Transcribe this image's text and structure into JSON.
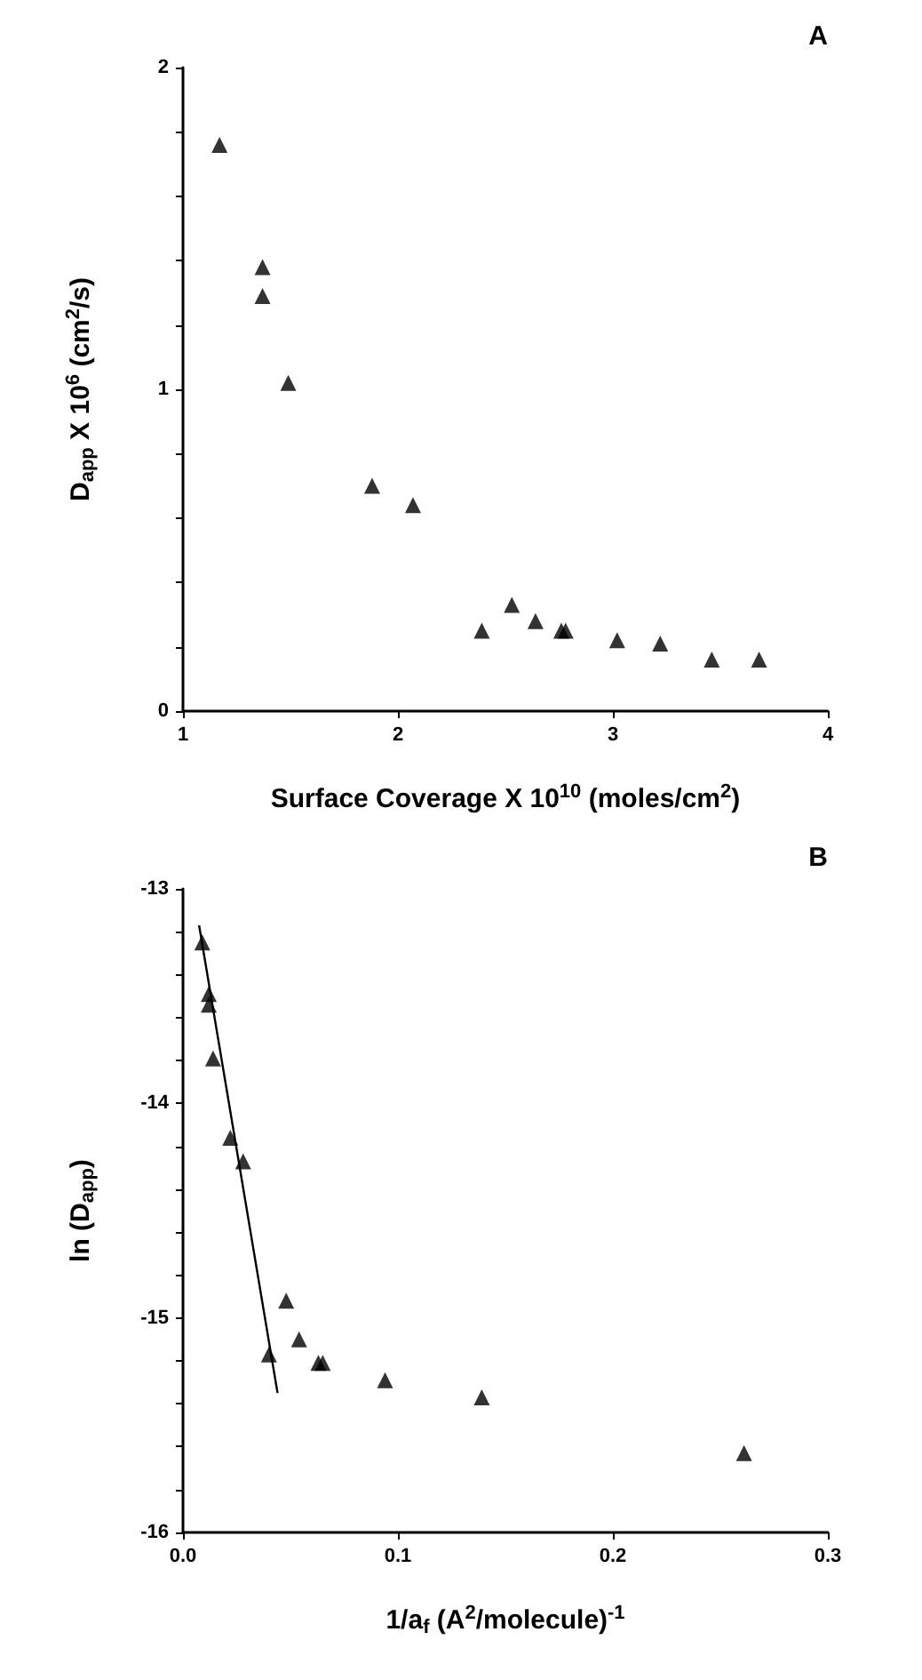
{
  "chart_data": [
    {
      "type": "scatter",
      "title": "A",
      "xlabel": "Surface Coverage X 10$^{10}$ (moles/cm$^{2}$)",
      "ylabel": "D$_{app}$ X 10$^{6}$ (cm$^{2}$/s)",
      "xlim": [
        1,
        4
      ],
      "xticks": [
        1,
        2,
        3,
        4
      ],
      "ylim": [
        0,
        2
      ],
      "yticks": [
        0,
        {
          "value": 0.2,
          "label": null
        },
        {
          "value": 0.4,
          "label": null
        },
        {
          "value": 0.6,
          "label": null
        },
        {
          "value": 0.8,
          "label": null
        },
        1,
        {
          "value": 1.2,
          "label": null
        },
        {
          "value": 1.4,
          "label": null
        },
        {
          "value": 1.6,
          "label": null
        },
        {
          "value": 1.8,
          "label": null
        },
        2
      ],
      "marker": "triangle",
      "series": [
        {
          "color": "#000000",
          "x": [
            1.17,
            1.37,
            1.37,
            1.49,
            1.88,
            2.07,
            2.39,
            2.53,
            2.64,
            2.76,
            2.78,
            3.02,
            3.22,
            3.46,
            3.68
          ],
          "values": [
            1.76,
            1.38,
            1.29,
            1.02,
            0.7,
            0.64,
            0.25,
            0.33,
            0.28,
            0.25,
            0.25,
            0.22,
            0.21,
            0.16,
            0.16
          ]
        }
      ]
    },
    {
      "type": "scatter",
      "title": "B",
      "xlabel": "1/a$_{f}$ (A$^{2}$/molecule)$^{-1}$",
      "ylabel": "ln (D$_{app}$)",
      "xlim": [
        0,
        0.3
      ],
      "xticks": [
        {
          "value": 0,
          "label": "0.0"
        },
        0.1,
        0.2,
        0.3
      ],
      "ylim": [
        -16,
        -13
      ],
      "yticks": [
        -16,
        {
          "value": -15.8,
          "label": null
        },
        {
          "value": -15.6,
          "label": null
        },
        {
          "value": -15.4,
          "label": null
        },
        {
          "value": -15.2,
          "label": null
        },
        -15,
        {
          "value": -14.8,
          "label": null
        },
        {
          "value": -14.6,
          "label": null
        },
        {
          "value": -14.4,
          "label": null
        },
        {
          "value": -14.2,
          "label": null
        },
        -14,
        {
          "value": -13.8,
          "label": null
        },
        {
          "value": -13.6,
          "label": null
        },
        {
          "value": -13.4,
          "label": null
        },
        {
          "value": -13.2,
          "label": null
        },
        -13
      ],
      "marker": "triangle",
      "series": [
        {
          "color": "#000000",
          "x": [
            0.009,
            0.012,
            0.012,
            0.014,
            0.022,
            0.028,
            0.04,
            0.048,
            0.054,
            0.063,
            0.065,
            0.094,
            0.139,
            0.261
          ],
          "values": [
            -13.25,
            -13.49,
            -13.54,
            -13.79,
            -14.16,
            -14.27,
            -15.17,
            -14.92,
            -15.1,
            -15.21,
            -15.21,
            -15.29,
            -15.37,
            -15.63
          ]
        },
        {
          "type": "line",
          "color": "#000000",
          "line_style": "solid",
          "marker": "none",
          "x": [
            0.0075,
            0.044
          ],
          "values": [
            -13.17,
            -15.35
          ]
        }
      ]
    }
  ]
}
